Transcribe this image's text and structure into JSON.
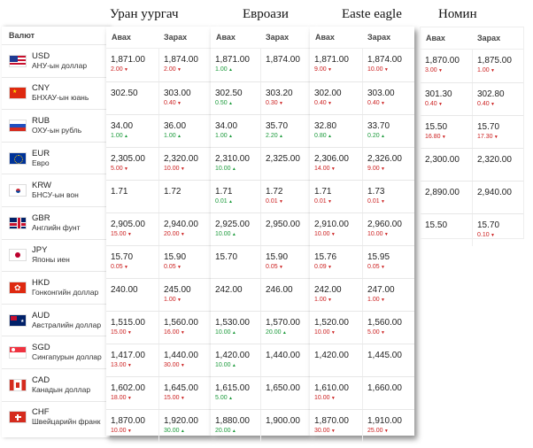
{
  "header": {
    "currency_label": "Валют",
    "buy_label": "Авах",
    "sell_label": "Зарах"
  },
  "currencies": [
    {
      "code": "USD",
      "name": "АНУ-ын доллар",
      "flag": "us"
    },
    {
      "code": "CNY",
      "name": "БНХАУ-ын юань",
      "flag": "cn"
    },
    {
      "code": "RUB",
      "name": "ОХУ-ын рубль",
      "flag": "ru"
    },
    {
      "code": "EUR",
      "name": "Евро",
      "flag": "eu"
    },
    {
      "code": "KRW",
      "name": "БНСУ-ын вон",
      "flag": "kr"
    },
    {
      "code": "GBR",
      "name": "Английн фунт",
      "flag": "gb"
    },
    {
      "code": "JPY",
      "name": "Японы иен",
      "flag": "jp"
    },
    {
      "code": "HKD",
      "name": "Гонконгийн доллар",
      "flag": "hk"
    },
    {
      "code": "AUD",
      "name": "Австралийн доллар",
      "flag": "au"
    },
    {
      "code": "SGD",
      "name": "Сингапурын доллар",
      "flag": "sg"
    },
    {
      "code": "CAD",
      "name": "Канадын доллар",
      "flag": "ca"
    },
    {
      "code": "CHF",
      "name": "Швейцарийн франк",
      "flag": "ch"
    }
  ],
  "banks": [
    {
      "name": "Уран уургач",
      "rows": [
        {
          "buy": "1,871.00",
          "buy_chg": "2.00",
          "buy_dir": "down",
          "sell": "1,874.00",
          "sell_chg": "2.00",
          "sell_dir": "down"
        },
        {
          "buy": "302.50",
          "buy_chg": "",
          "buy_dir": "",
          "sell": "303.00",
          "sell_chg": "0.40",
          "sell_dir": "down"
        },
        {
          "buy": "34.00",
          "buy_chg": "1.00",
          "buy_dir": "up",
          "sell": "36.00",
          "sell_chg": "1.00",
          "sell_dir": "up"
        },
        {
          "buy": "2,305.00",
          "buy_chg": "5.00",
          "buy_dir": "down",
          "sell": "2,320.00",
          "sell_chg": "10.00",
          "sell_dir": "down"
        },
        {
          "buy": "1.71",
          "buy_chg": "",
          "buy_dir": "",
          "sell": "1.72",
          "sell_chg": "",
          "sell_dir": ""
        },
        {
          "buy": "2,905.00",
          "buy_chg": "15.00",
          "buy_dir": "down",
          "sell": "2,940.00",
          "sell_chg": "20.00",
          "sell_dir": "down"
        },
        {
          "buy": "15.70",
          "buy_chg": "0.05",
          "buy_dir": "down",
          "sell": "15.90",
          "sell_chg": "0.05",
          "sell_dir": "down"
        },
        {
          "buy": "240.00",
          "buy_chg": "",
          "buy_dir": "",
          "sell": "245.00",
          "sell_chg": "1.00",
          "sell_dir": "down"
        },
        {
          "buy": "1,515.00",
          "buy_chg": "15.00",
          "buy_dir": "down",
          "sell": "1,560.00",
          "sell_chg": "16.00",
          "sell_dir": "down"
        },
        {
          "buy": "1,417.00",
          "buy_chg": "13.00",
          "buy_dir": "down",
          "sell": "1,440.00",
          "sell_chg": "30.00",
          "sell_dir": "down"
        },
        {
          "buy": "1,602.00",
          "buy_chg": "18.00",
          "buy_dir": "down",
          "sell": "1,645.00",
          "sell_chg": "15.00",
          "sell_dir": "down"
        },
        {
          "buy": "1,870.00",
          "buy_chg": "10.00",
          "buy_dir": "down",
          "sell": "1,920.00",
          "sell_chg": "30.00",
          "sell_dir": "up"
        }
      ]
    },
    {
      "name": "Евроази",
      "rows": [
        {
          "buy": "1,871.00",
          "buy_chg": "1.00",
          "buy_dir": "up",
          "sell": "1,874.00",
          "sell_chg": "",
          "sell_dir": ""
        },
        {
          "buy": "302.50",
          "buy_chg": "0.50",
          "buy_dir": "up",
          "sell": "303.20",
          "sell_chg": "0.30",
          "sell_dir": "down"
        },
        {
          "buy": "34.00",
          "buy_chg": "1.00",
          "buy_dir": "up",
          "sell": "35.70",
          "sell_chg": "2.20",
          "sell_dir": "up"
        },
        {
          "buy": "2,310.00",
          "buy_chg": "10.00",
          "buy_dir": "up",
          "sell": "2,325.00",
          "sell_chg": "",
          "sell_dir": ""
        },
        {
          "buy": "1.71",
          "buy_chg": "0.01",
          "buy_dir": "up",
          "sell": "1.72",
          "sell_chg": "0.01",
          "sell_dir": "down"
        },
        {
          "buy": "2,925.00",
          "buy_chg": "10.00",
          "buy_dir": "up",
          "sell": "2,950.00",
          "sell_chg": "",
          "sell_dir": ""
        },
        {
          "buy": "15.70",
          "buy_chg": "",
          "buy_dir": "",
          "sell": "15.90",
          "sell_chg": "0.05",
          "sell_dir": "down"
        },
        {
          "buy": "242.00",
          "buy_chg": "",
          "buy_dir": "",
          "sell": "246.00",
          "sell_chg": "",
          "sell_dir": ""
        },
        {
          "buy": "1,530.00",
          "buy_chg": "10.00",
          "buy_dir": "up",
          "sell": "1,570.00",
          "sell_chg": "20.00",
          "sell_dir": "up"
        },
        {
          "buy": "1,420.00",
          "buy_chg": "10.00",
          "buy_dir": "up",
          "sell": "1,440.00",
          "sell_chg": "",
          "sell_dir": ""
        },
        {
          "buy": "1,615.00",
          "buy_chg": "5.00",
          "buy_dir": "up",
          "sell": "1,650.00",
          "sell_chg": "",
          "sell_dir": ""
        },
        {
          "buy": "1,880.00",
          "buy_chg": "20.00",
          "buy_dir": "up",
          "sell": "1,900.00",
          "sell_chg": "",
          "sell_dir": ""
        }
      ]
    },
    {
      "name": "Easte eagle",
      "rows": [
        {
          "buy": "1,871.00",
          "buy_chg": "9.00",
          "buy_dir": "down",
          "sell": "1,874.00",
          "sell_chg": "10.00",
          "sell_dir": "down"
        },
        {
          "buy": "302.00",
          "buy_chg": "0.40",
          "buy_dir": "down",
          "sell": "303.00",
          "sell_chg": "0.40",
          "sell_dir": "down"
        },
        {
          "buy": "32.80",
          "buy_chg": "0.80",
          "buy_dir": "up",
          "sell": "33.70",
          "sell_chg": "0.20",
          "sell_dir": "up"
        },
        {
          "buy": "2,306.00",
          "buy_chg": "14.00",
          "buy_dir": "down",
          "sell": "2,326.00",
          "sell_chg": "9.00",
          "sell_dir": "down"
        },
        {
          "buy": "1.71",
          "buy_chg": "0.01",
          "buy_dir": "down",
          "sell": "1.73",
          "sell_chg": "0.01",
          "sell_dir": "down"
        },
        {
          "buy": "2,910.00",
          "buy_chg": "10.00",
          "buy_dir": "down",
          "sell": "2,960.00",
          "sell_chg": "10.00",
          "sell_dir": "down"
        },
        {
          "buy": "15.76",
          "buy_chg": "0.09",
          "buy_dir": "down",
          "sell": "15.95",
          "sell_chg": "0.05",
          "sell_dir": "down"
        },
        {
          "buy": "242.00",
          "buy_chg": "1.00",
          "buy_dir": "down",
          "sell": "247.00",
          "sell_chg": "1.00",
          "sell_dir": "down"
        },
        {
          "buy": "1,520.00",
          "buy_chg": "10.00",
          "buy_dir": "down",
          "sell": "1,560.00",
          "sell_chg": "5.00",
          "sell_dir": "down"
        },
        {
          "buy": "1,420.00",
          "buy_chg": "",
          "buy_dir": "",
          "sell": "1,445.00",
          "sell_chg": "",
          "sell_dir": ""
        },
        {
          "buy": "1,610.00",
          "buy_chg": "10.00",
          "buy_dir": "down",
          "sell": "1,660.00",
          "sell_chg": "",
          "sell_dir": ""
        },
        {
          "buy": "1,870.00",
          "buy_chg": "30.00",
          "buy_dir": "down",
          "sell": "1,910.00",
          "sell_chg": "25.00",
          "sell_dir": "down"
        }
      ]
    },
    {
      "name": "Номин",
      "rows": [
        {
          "buy": "1,870.00",
          "buy_chg": "3.00",
          "buy_dir": "down",
          "sell": "1,875.00",
          "sell_chg": "1.00",
          "sell_dir": "down"
        },
        {
          "buy": "301.30",
          "buy_chg": "0.40",
          "buy_dir": "down",
          "sell": "302.80",
          "sell_chg": "0.40",
          "sell_dir": "down"
        },
        {
          "buy": "15.50",
          "buy_chg": "16.80",
          "buy_dir": "down",
          "sell": "15.70",
          "sell_chg": "17.30",
          "sell_dir": "down"
        },
        {
          "buy": "2,300.00",
          "buy_chg": "",
          "buy_dir": "",
          "sell": "2,320.00",
          "sell_chg": "",
          "sell_dir": ""
        },
        {
          "buy": "2,890.00",
          "buy_chg": "",
          "buy_dir": "",
          "sell": "2,940.00",
          "sell_chg": "",
          "sell_dir": ""
        },
        {
          "buy": "15.50",
          "buy_chg": "",
          "buy_dir": "",
          "sell": "15.70",
          "sell_chg": "0.10",
          "sell_dir": "down"
        }
      ]
    }
  ]
}
